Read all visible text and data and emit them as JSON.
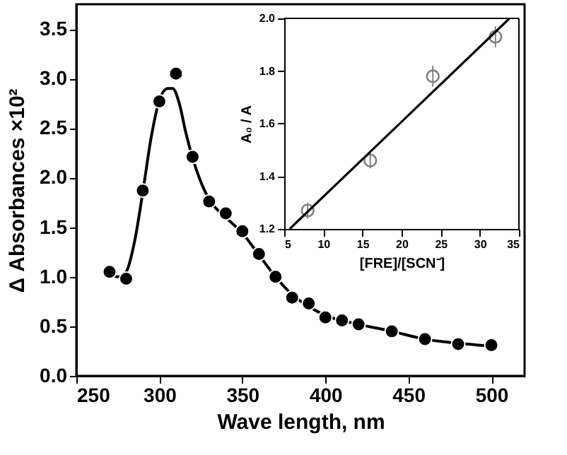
{
  "chart_data": [
    {
      "type": "scatter",
      "xlabel": "Wave length, nm",
      "ylabel": "Δ Absorbances ×10²",
      "xlim": [
        250,
        520
      ],
      "ylim": [
        0,
        3.75
      ],
      "xticks": [
        250,
        300,
        350,
        400,
        450,
        500
      ],
      "yticks": [
        {
          "value": 0,
          "label": "0.0"
        },
        {
          "value": 0.5,
          "label": "0.5"
        },
        {
          "value": 1,
          "label": "1.0"
        },
        {
          "value": 1.5,
          "label": "1.5"
        },
        {
          "value": 2,
          "label": "2.0"
        },
        {
          "value": 2.5,
          "label": "2.5"
        },
        {
          "value": 3,
          "label": "3.0"
        },
        {
          "value": 3.5,
          "label": "3.5"
        }
      ],
      "grid": false,
      "legend": false,
      "series": [
        {
          "type": "line",
          "color": "#000000",
          "line_style": "solid",
          "marker": "none",
          "x": [
            270,
            275,
            280,
            285,
            290,
            295,
            300,
            305,
            308,
            312,
            316,
            320,
            330,
            340,
            350,
            360,
            370,
            380,
            390,
            400,
            420,
            440,
            460,
            480,
            500
          ],
          "values": [
            1.02,
            1.0,
            1.05,
            1.35,
            1.85,
            2.4,
            2.78,
            2.9,
            2.9,
            2.75,
            2.45,
            2.2,
            1.78,
            1.6,
            1.44,
            1.22,
            1.0,
            0.82,
            0.7,
            0.61,
            0.52,
            0.45,
            0.37,
            0.33,
            0.3
          ]
        },
        {
          "type": "scatter",
          "color": "#000000",
          "marker": "circle",
          "x": [
            270,
            280,
            290,
            300,
            310,
            320,
            330,
            340,
            350,
            360,
            370,
            380,
            390,
            400,
            410,
            420,
            440,
            460,
            480,
            500
          ],
          "values": [
            1.05,
            0.98,
            1.87,
            2.77,
            3.05,
            2.21,
            1.76,
            1.64,
            1.46,
            1.23,
            1.0,
            0.79,
            0.73,
            0.59,
            0.56,
            0.52,
            0.45,
            0.37,
            0.32,
            0.31
          ]
        }
      ]
    },
    {
      "type": "scatter",
      "xlabel": "[FRE]/[SCN⁻]",
      "ylabel": "A₀ / A",
      "xlim": [
        5,
        35
      ],
      "ylim": [
        1.2,
        2.0
      ],
      "xticks": [
        5,
        10,
        15,
        20,
        25,
        30,
        35
      ],
      "yticks": [
        {
          "value": 1.2,
          "label": "1.2"
        },
        {
          "value": 1.4,
          "label": "1.4"
        },
        {
          "value": 1.6,
          "label": "1.6"
        },
        {
          "value": 1.8,
          "label": "1.8"
        },
        {
          "value": 2,
          "label": "2.0"
        }
      ],
      "grid": false,
      "legend": false,
      "series": [
        {
          "type": "scatter",
          "color": "#808080",
          "marker": "circle",
          "x": [
            8,
            16,
            24,
            32
          ],
          "values": [
            1.27,
            1.46,
            1.78,
            1.93
          ],
          "errors": [
            0.03,
            0.03,
            0.04,
            0.04
          ]
        },
        {
          "type": "line",
          "color": "#000000",
          "line_style": "solid",
          "marker": "none",
          "x": [
            5.7,
            33.8
          ],
          "values": [
            1.2,
            2.0
          ]
        }
      ]
    }
  ]
}
